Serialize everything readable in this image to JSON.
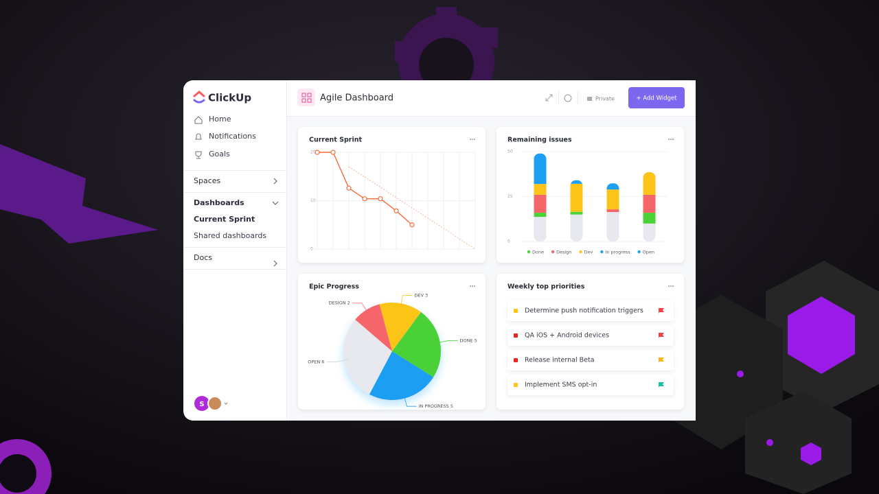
{
  "brand": "ClickUp",
  "nav": [
    "Home",
    "Notifications",
    "Goals"
  ],
  "sections": [
    {
      "label": "Spaces"
    },
    {
      "label": "Dashboards",
      "items": [
        "Current Sprint",
        "Shared dashboards"
      ]
    },
    {
      "label": "Docs"
    }
  ],
  "avatar": "S",
  "header": {
    "title": "Agile Dashboard",
    "privacy": "Private",
    "button": "+ Add Widget"
  },
  "chart_data": [
    {
      "type": "line",
      "title": "Current Sprint",
      "categories": [
        null,
        null,
        null,
        null,
        null,
        null,
        null,
        null,
        null,
        null,
        null
      ],
      "series": [
        {
          "color": "#f26b3a",
          "values": [
            20,
            20,
            12.6,
            10.4,
            10.4,
            7.9,
            5,
            null,
            null,
            null,
            null
          ]
        },
        {
          "color": "#f6b49b",
          "dashed": true,
          "values": [
            null,
            null,
            17,
            14.9,
            12.8,
            10.6,
            8.5,
            6.4,
            4.3,
            2.1,
            0
          ]
        }
      ],
      "ylim": [
        0,
        20
      ],
      "yticks": [
        0,
        10,
        20
      ],
      "grid": true
    },
    {
      "type": "stacked-bar",
      "title": "Remaining issues",
      "categories": [
        null,
        null,
        null,
        null
      ],
      "series": [
        {
          "name": "Done",
          "color": "#4cd137",
          "values": [
            2.3,
            1.5,
            0,
            6
          ]
        },
        {
          "name": "Design",
          "color": "#f5666b",
          "values": [
            10,
            0,
            1.5,
            10
          ]
        },
        {
          "name": "Dev",
          "color": "#fcc419",
          "values": [
            6,
            15.6,
            11,
            12.6
          ]
        },
        {
          "name": "In progress",
          "color": "#1e9ff2",
          "values": [
            17,
            2,
            3.5,
            0
          ]
        },
        {
          "name": "Open",
          "color": "#e8e9ee",
          "values": [
            13.7,
            15,
            16.4,
            10
          ]
        }
      ],
      "ylim": [
        0,
        50
      ],
      "yticks": [
        0,
        25,
        50
      ],
      "grid": true,
      "legend": "bottom"
    },
    {
      "type": "pie",
      "title": "Epic Progress",
      "values": [
        3,
        5,
        5,
        6,
        2
      ],
      "value_labels": [
        "DEV 3",
        "DONE 5",
        "IN PROGRESS 5",
        "OPEN 6",
        "DESIGN 2"
      ],
      "colors": [
        "#fcc419",
        "#4cd137",
        "#1e9ff2",
        "#e8e9ee",
        "#f5666b"
      ]
    }
  ],
  "priorities": {
    "title": "Weekly top priorities",
    "items": [
      {
        "text": "Determine push notification triggers",
        "status_color": "#fcc419",
        "flag_color": "#f5414b"
      },
      {
        "text": "QA iOS + Android devices",
        "status_color": "#e8251f",
        "flag_color": "#f5414b"
      },
      {
        "text": "Release internal Beta",
        "status_color": "#e8251f",
        "flag_color": "#fcb619"
      },
      {
        "text": "Implement SMS opt-in",
        "status_color": "#fcc419",
        "flag_color": "#1bc29a"
      }
    ]
  }
}
